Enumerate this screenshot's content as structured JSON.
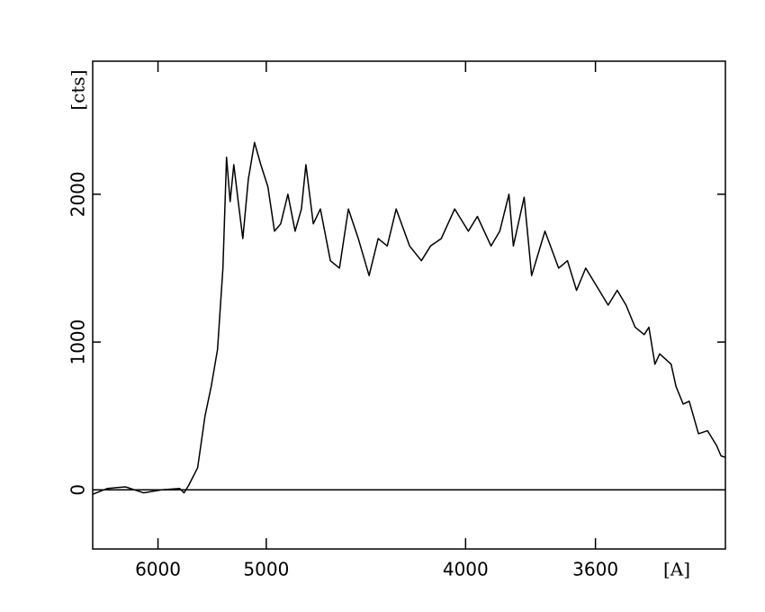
{
  "chart_data": {
    "type": "line",
    "x_label": "[A]",
    "y_label": "[cts]",
    "xscale": "inverse-square",
    "xlim": [
      7000,
      3300
    ],
    "xticks": [
      6000,
      5000,
      4000,
      3600
    ],
    "ylim": [
      -400,
      2900
    ],
    "yticks": [
      0,
      1000,
      2000
    ],
    "zero_line": true,
    "grid": false,
    "x": [
      7000,
      6730,
      6440,
      6184,
      5956,
      5752,
      5705,
      5658,
      5568,
      5498,
      5440,
      5384,
      5337,
      5306,
      5276,
      5246,
      5210,
      5174,
      5132,
      5085,
      5039,
      4988,
      4943,
      4901,
      4854,
      4808,
      4769,
      4742,
      4698,
      4657,
      4601,
      4552,
      4505,
      4455,
      4402,
      4359,
      4317,
      4277,
      4219,
      4170,
      4133,
      4091,
      4040,
      3990,
      3958,
      3911,
      3882,
      3852,
      3838,
      3804,
      3781,
      3741,
      3701,
      3676,
      3651,
      3626,
      3602,
      3567,
      3544,
      3522,
      3500,
      3478,
      3467,
      3453,
      3442,
      3416,
      3405,
      3389,
      3376,
      3356,
      3337,
      3318,
      3309,
      3300
    ],
    "series": [
      {
        "color": "#000000",
        "values": [
          -30,
          10,
          20,
          -20,
          0,
          10,
          -20,
          30,
          150,
          500,
          700,
          950,
          1500,
          2250,
          1950,
          2200,
          1950,
          1700,
          2100,
          2350,
          2200,
          2050,
          1750,
          1800,
          2000,
          1750,
          1900,
          2200,
          1800,
          1900,
          1550,
          1500,
          1900,
          1700,
          1450,
          1700,
          1650,
          1900,
          1650,
          1550,
          1650,
          1700,
          1900,
          1750,
          1850,
          1650,
          1750,
          2000,
          1650,
          1980,
          1450,
          1750,
          1500,
          1550,
          1350,
          1500,
          1400,
          1250,
          1350,
          1250,
          1100,
          1050,
          1100,
          850,
          920,
          850,
          700,
          580,
          600,
          380,
          400,
          300,
          230,
          220
        ]
      }
    ]
  }
}
